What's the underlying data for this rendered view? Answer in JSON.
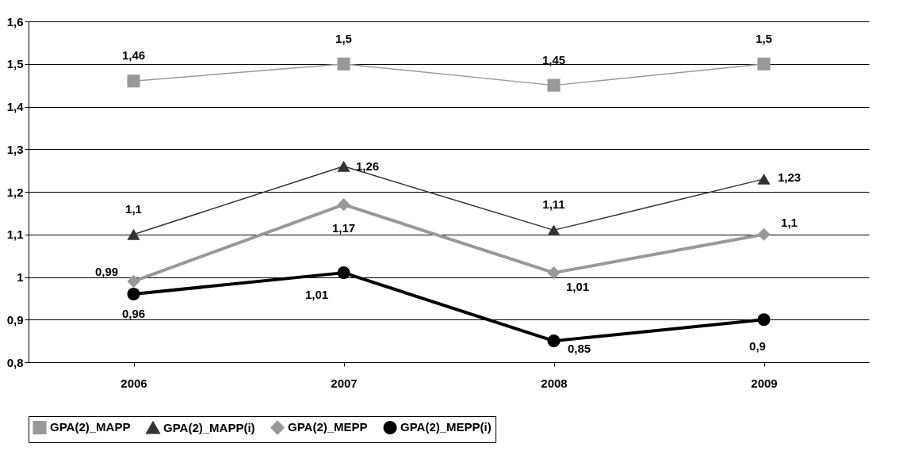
{
  "chart_data": {
    "type": "line",
    "categories": [
      "2006",
      "2007",
      "2008",
      "2009"
    ],
    "series": [
      {
        "name": "GPA(2)_MAPP",
        "color": "#999999",
        "marker": "square",
        "values": [
          1.46,
          1.5,
          1.45,
          1.5
        ],
        "value_labels": [
          "1,46",
          "1,5",
          "1,45",
          "1,5"
        ]
      },
      {
        "name": "GPA(2)_MAPP(i)",
        "color": "#333333",
        "marker": "triangle",
        "values": [
          1.1,
          1.26,
          1.11,
          1.23
        ],
        "value_labels": [
          "1,1",
          "1,26",
          "1,11",
          "1,23"
        ]
      },
      {
        "name": "GPA(2)_MEPP",
        "color": "#999999",
        "marker": "diamond",
        "values": [
          0.99,
          1.17,
          1.01,
          1.1
        ],
        "value_labels": [
          "0,99",
          "1,17",
          "1,01",
          "1,1"
        ]
      },
      {
        "name": "GPA(2)_MEPP(i)",
        "color": "#000000",
        "marker": "circle",
        "values": [
          0.96,
          1.01,
          0.85,
          0.9
        ],
        "value_labels": [
          "0,96",
          "1,01",
          "0,85",
          "0,9"
        ]
      }
    ],
    "ylim": [
      0.8,
      1.6
    ],
    "yticks": [
      {
        "value": 0.8,
        "label": "0,8"
      },
      {
        "value": 0.9,
        "label": "0,9"
      },
      {
        "value": 1,
        "label": "1"
      },
      {
        "value": 1.1,
        "label": "1,1"
      },
      {
        "value": 1.2,
        "label": "1,2"
      },
      {
        "value": 1.3,
        "label": "1,3"
      },
      {
        "value": 1.4,
        "label": "1,4"
      },
      {
        "value": 1.5,
        "label": "1,5"
      },
      {
        "value": 1.6,
        "label": "1,6"
      }
    ],
    "grid": "y",
    "legend": "bottom",
    "line_style": "solid"
  }
}
